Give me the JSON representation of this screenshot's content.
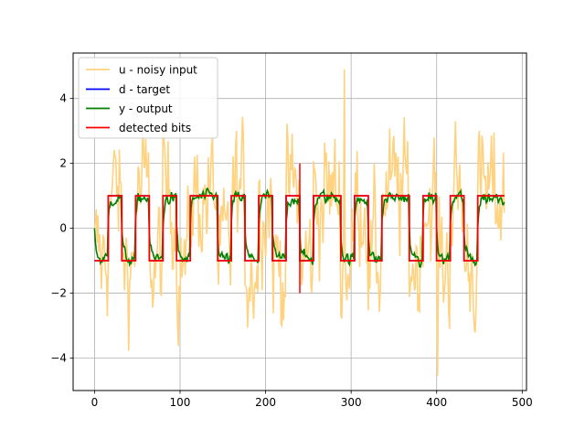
{
  "chart_data": {
    "type": "line",
    "title": "",
    "xlabel": "",
    "ylabel": "",
    "xlim": [
      -25,
      505
    ],
    "ylim": [
      -5,
      5.4
    ],
    "xticks": [
      0,
      100,
      200,
      300,
      400,
      500
    ],
    "yticks": [
      -4,
      -2,
      0,
      2,
      4
    ],
    "xtick_labels": [
      "0",
      "100",
      "200",
      "300",
      "400",
      "500"
    ],
    "ytick_labels": [
      "−4",
      "−2",
      "0",
      "2",
      "4"
    ],
    "grid": true,
    "legend_position": "top-left",
    "bit_period": 16,
    "bits": [
      -1,
      1,
      -1,
      1,
      -1,
      1,
      -1,
      1,
      1,
      -1,
      1,
      -1,
      1,
      -1,
      1,
      -1,
      1,
      1,
      -1,
      1,
      -1,
      1,
      1,
      -1,
      1,
      -1,
      1,
      -1,
      1,
      1
    ],
    "series": [
      {
        "name": "u - noisy input",
        "color": "#ffd27f",
        "kind": "noisy",
        "samples": 480,
        "peak_max": 4.9,
        "peak_min": -4.55
      },
      {
        "name": "d - target",
        "color": "#0000ff",
        "kind": "square"
      },
      {
        "name": "y - output",
        "color": "#008000",
        "kind": "filtered",
        "samples": 480
      },
      {
        "name": "detected bits",
        "color": "#ff0000",
        "kind": "square",
        "spikes": [
          {
            "x": 240,
            "y_from": -2,
            "y_to": 2
          }
        ]
      }
    ]
  }
}
